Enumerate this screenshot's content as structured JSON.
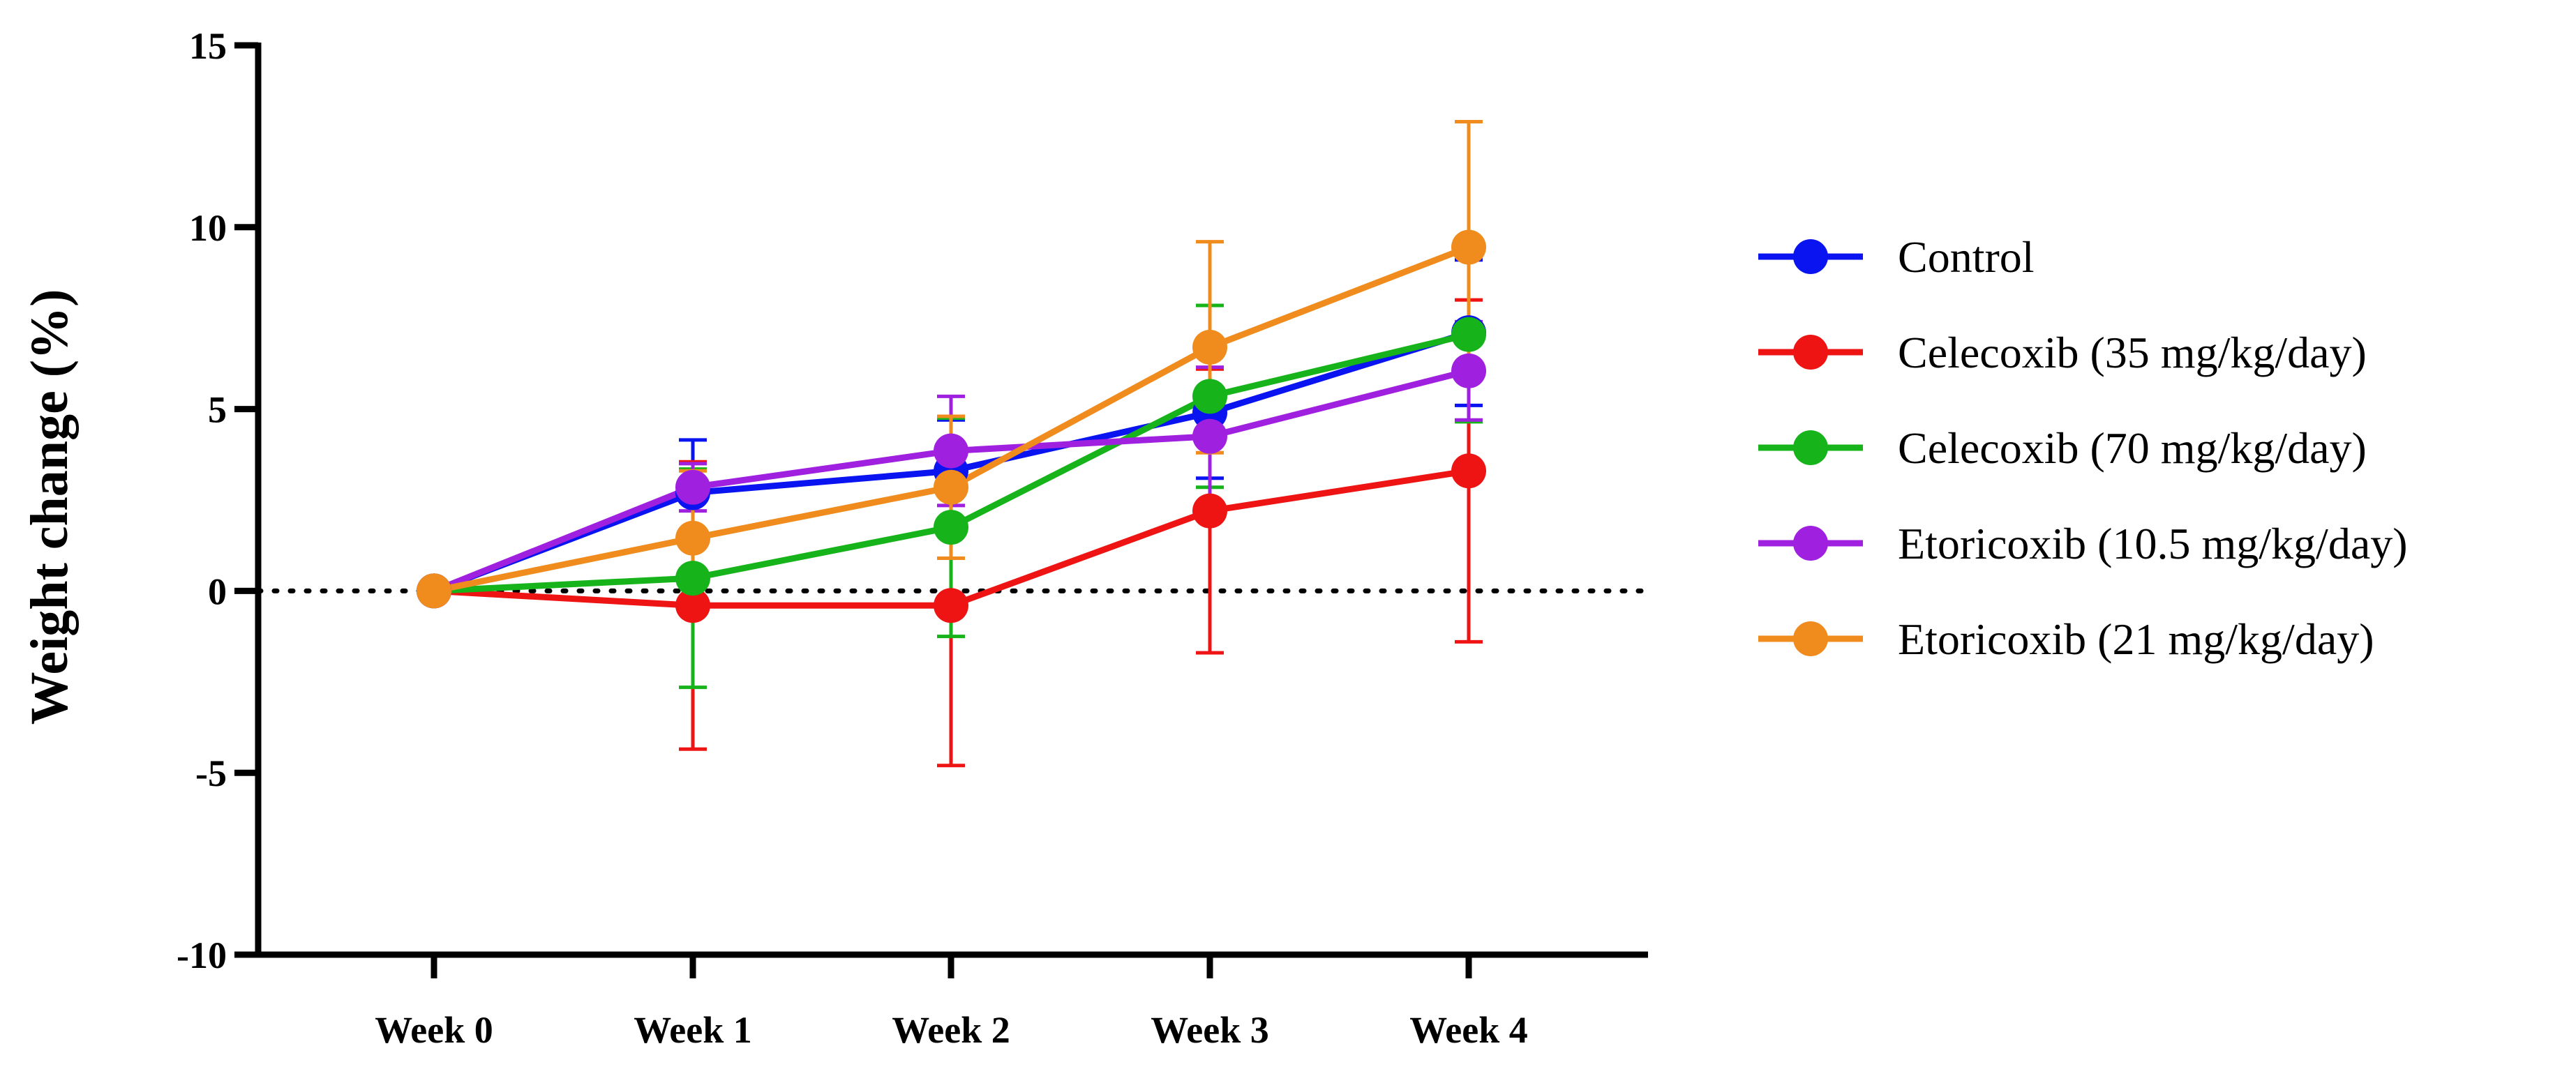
{
  "chart_data": {
    "type": "line",
    "title": "",
    "xlabel": "",
    "ylabel": "Weight change (%)",
    "ylim": [
      -10,
      15
    ],
    "yticks": [
      "-10",
      "-5",
      "0",
      "5",
      "10",
      "15"
    ],
    "categories": [
      "Week 0",
      "Week 1",
      "Week 2",
      "Week 3",
      "Week 4"
    ],
    "reference_line": {
      "y": 0,
      "style": "dotted"
    },
    "legend": "right",
    "series": [
      {
        "name": "Control",
        "color": "#0a14f0",
        "values": [
          0,
          2.7,
          3.3,
          4.9,
          7.1
        ],
        "error": [
          0,
          1.45,
          1.4,
          1.8,
          2.0
        ]
      },
      {
        "name": "Celecoxib (35 mg/kg/day)",
        "color": "#ee1414",
        "values": [
          0,
          -0.4,
          -0.4,
          2.2,
          3.3
        ],
        "error": [
          0,
          3.95,
          4.4,
          3.9,
          4.7
        ]
      },
      {
        "name": "Celecoxib (70 mg/kg/day)",
        "color": "#16b41a",
        "values": [
          0,
          0.35,
          1.75,
          5.35,
          7.05
        ],
        "error": [
          0,
          3.0,
          3.0,
          2.5,
          2.4
        ]
      },
      {
        "name": "Etoricoxib (10.5 mg/kg/day)",
        "color": "#a020e0",
        "values": [
          0,
          2.85,
          3.85,
          4.25,
          6.05
        ],
        "error": [
          0,
          0.65,
          1.5,
          1.9,
          1.35
        ]
      },
      {
        "name": "Etoricoxib (21 mg/kg/day)",
        "color": "#f08c1e",
        "values": [
          0,
          1.45,
          2.85,
          6.7,
          9.45
        ],
        "error": [
          0,
          1.85,
          1.95,
          2.9,
          3.45
        ]
      }
    ]
  }
}
